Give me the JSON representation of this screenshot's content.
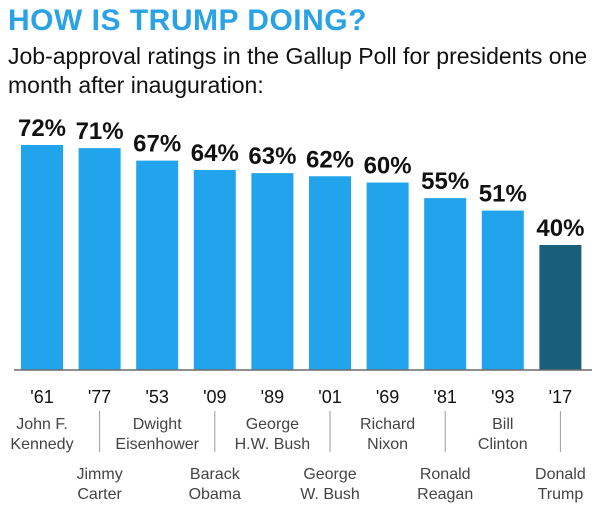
{
  "title": "HOW IS TRUMP DOING?",
  "subtitle": "Job-approval ratings in the Gallup Poll for presidents one month after inauguration:",
  "colors": {
    "title": "#29a3e6",
    "bar": "#22a4ec",
    "highlight_bar": "#1a5f7a",
    "text": "#111111",
    "label": "#444444",
    "leader": "#9a9a9a"
  },
  "chart_data": {
    "type": "bar",
    "title": "HOW IS TRUMP DOING?",
    "subtitle": "Job-approval ratings in the Gallup Poll for presidents one month after inauguration:",
    "categories": [
      "'61",
      "'77",
      "'53",
      "'09",
      "'89",
      "'01",
      "'69",
      "'81",
      "'93",
      "'17"
    ],
    "names": [
      [
        "John F.",
        "Kennedy"
      ],
      [
        "Jimmy",
        "Carter"
      ],
      [
        "Dwight",
        "Eisenhower"
      ],
      [
        "Barack",
        "Obama"
      ],
      [
        "George",
        "H.W. Bush"
      ],
      [
        "George",
        "W. Bush"
      ],
      [
        "Richard",
        "Nixon"
      ],
      [
        "Ronald",
        "Reagan"
      ],
      [
        "Bill",
        "Clinton"
      ],
      [
        "Donald",
        "Trump"
      ]
    ],
    "values": [
      72,
      71,
      67,
      64,
      63,
      62,
      60,
      55,
      51,
      40
    ],
    "value_labels": [
      "72%",
      "71%",
      "67%",
      "64%",
      "63%",
      "62%",
      "60%",
      "55%",
      "51%",
      "40%"
    ],
    "highlight_index": 9,
    "ylim": [
      0,
      100
    ],
    "grid": false
  }
}
